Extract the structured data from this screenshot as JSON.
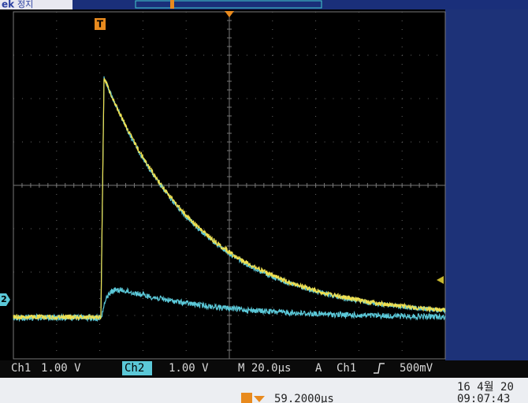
{
  "header": {
    "brand": "ek",
    "status": "정지"
  },
  "markers": {
    "trigger_position": "T",
    "ch2": "2"
  },
  "status_bar": {
    "ch1_label": "Ch1",
    "ch1_scale": "1.00 V",
    "ch2_label": "Ch2",
    "ch2_scale": "1.00 V",
    "timebase": "M 20.0µs",
    "trigger_mode": "A",
    "trigger_source": "Ch1",
    "trigger_level": "500mV"
  },
  "footer": {
    "trigger_offset": "59.2000µs",
    "date": "16 4월 20",
    "time": "09:07:43"
  }
}
